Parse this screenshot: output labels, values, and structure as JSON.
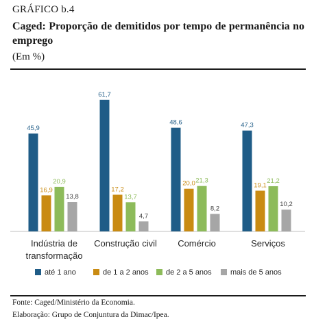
{
  "figure": {
    "label": "GRÁFICO b.4",
    "title": "Caged: Proporção de demitidos por tempo de permanência no emprego",
    "subtitle": "(Em %)",
    "source": "Fonte: Caged/Ministério da Economia.",
    "elaboration": "Elaboração: Grupo de Conjuntura da Dimac/Ipea."
  },
  "chart_data": {
    "type": "bar",
    "categories": [
      [
        "Indústria de",
        "transformação"
      ],
      [
        "Construção civil"
      ],
      [
        "Comércio"
      ],
      [
        "Serviços"
      ]
    ],
    "series": [
      {
        "name": "até 1 ano",
        "color": "#1f5c87",
        "values": [
          45.9,
          61.7,
          48.6,
          47.3
        ],
        "labels": [
          "45,9",
          "61,7",
          "48,6",
          "47,3"
        ]
      },
      {
        "name": "de 1 a 2 anos",
        "color": "#c98b12",
        "values": [
          16.9,
          17.2,
          20.0,
          19.1
        ],
        "labels": [
          "16,9",
          "17,2",
          "20,0",
          "19,1"
        ]
      },
      {
        "name": "de 2 a 5 anos",
        "color": "#8dbb5a",
        "values": [
          20.9,
          13.7,
          21.3,
          21.2
        ],
        "labels": [
          "20,9",
          "13,7",
          "21,3",
          "21,2"
        ]
      },
      {
        "name": "mais de 5 anos",
        "color": "#a6a6a6",
        "values": [
          13.8,
          4.7,
          8.2,
          10.2
        ],
        "labels": [
          "13,8",
          "4,7",
          "8,2",
          "10,2"
        ]
      }
    ],
    "ylim": [
      0,
      65
    ],
    "legend_position": "bottom",
    "grid": false
  }
}
